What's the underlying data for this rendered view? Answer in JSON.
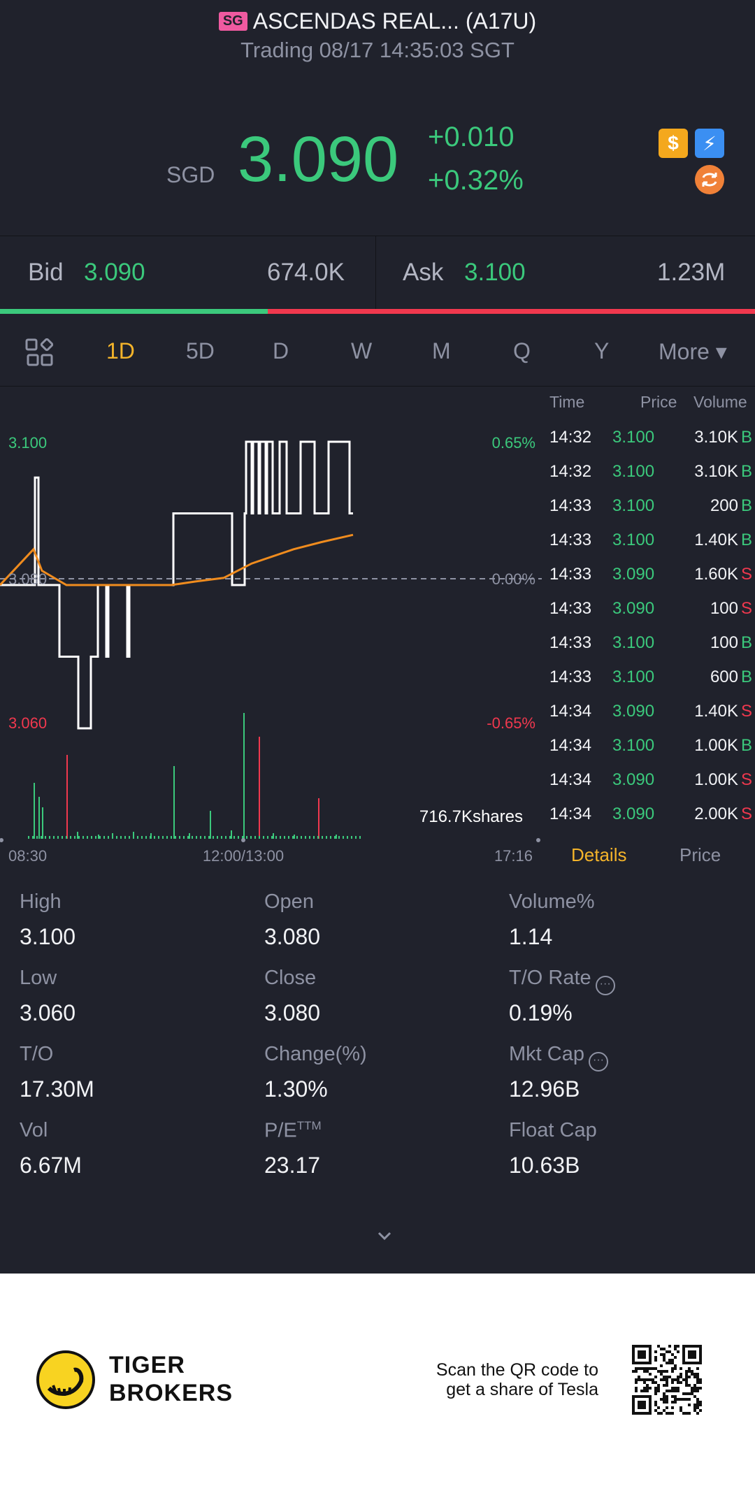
{
  "header": {
    "market": "SG",
    "title": "ASCENDAS REAL... (A17U)",
    "subtitle": "Trading 08/17 14:35:03 SGT"
  },
  "quote": {
    "currency": "SGD",
    "price": "3.090",
    "change": "+0.010",
    "change_pct": "+0.32%",
    "coin_icon": "$",
    "flash_icon": "⚡"
  },
  "bid_ask": {
    "bid_label": "Bid",
    "bid_price": "3.090",
    "bid_volume": "674.0K",
    "ask_label": "Ask",
    "ask_price": "3.100",
    "ask_volume": "1.23M",
    "bid_share": 0.355
  },
  "tabs": [
    "1D",
    "5D",
    "D",
    "W",
    "M",
    "Q",
    "Y",
    "More ▾"
  ],
  "active_tab": "1D",
  "chart_data": {
    "type": "line",
    "y_labels": {
      "top": "3.100",
      "mid": "3.080",
      "bottom": "3.060"
    },
    "pct_labels": {
      "top": "0.65%",
      "mid": "0.00%",
      "bottom": "-0.65%"
    },
    "x_labels": [
      "08:30",
      "12:00/13:00",
      "17:16"
    ],
    "volume_label": "716.7Kshares",
    "ylim": [
      3.06,
      3.1
    ],
    "series": [
      {
        "values": [
          3.08,
          3.08,
          3.095,
          3.08,
          3.07,
          3.07,
          3.06,
          3.07,
          3.08,
          3.07,
          3.08,
          3.07,
          3.08,
          3.08,
          3.09,
          3.09,
          3.08,
          3.09,
          3.1,
          3.09,
          3.1,
          3.09,
          3.1,
          3.09,
          3.1,
          3.09,
          3.1,
          3.09,
          3.1,
          3.09,
          3.1,
          3.09
        ]
      },
      {
        "values": [
          3.08,
          3.085,
          3.082,
          3.08,
          3.08,
          3.08,
          3.0805,
          3.081,
          3.083,
          3.085,
          3.086,
          3.087
        ]
      }
    ]
  },
  "trades": {
    "headers": {
      "time": "Time",
      "price": "Price",
      "volume": "Volume"
    },
    "rows": [
      {
        "time": "14:32",
        "price": "3.100",
        "volume": "3.10K",
        "side": "B"
      },
      {
        "time": "14:32",
        "price": "3.100",
        "volume": "3.10K",
        "side": "B"
      },
      {
        "time": "14:33",
        "price": "3.100",
        "volume": "200",
        "side": "B"
      },
      {
        "time": "14:33",
        "price": "3.100",
        "volume": "1.40K",
        "side": "B"
      },
      {
        "time": "14:33",
        "price": "3.090",
        "volume": "1.60K",
        "side": "S"
      },
      {
        "time": "14:33",
        "price": "3.090",
        "volume": "100",
        "side": "S"
      },
      {
        "time": "14:33",
        "price": "3.100",
        "volume": "100",
        "side": "B"
      },
      {
        "time": "14:33",
        "price": "3.100",
        "volume": "600",
        "side": "B"
      },
      {
        "time": "14:34",
        "price": "3.090",
        "volume": "1.40K",
        "side": "S"
      },
      {
        "time": "14:34",
        "price": "3.100",
        "volume": "1.00K",
        "side": "B"
      },
      {
        "time": "14:34",
        "price": "3.090",
        "volume": "1.00K",
        "side": "S"
      },
      {
        "time": "14:34",
        "price": "3.090",
        "volume": "2.00K",
        "side": "S"
      }
    ],
    "tab_details": "Details",
    "tab_price": "Price"
  },
  "stats": [
    {
      "label": "High",
      "value": "3.100"
    },
    {
      "label": "Open",
      "value": "3.080"
    },
    {
      "label": "Volume%",
      "value": "1.14"
    },
    {
      "label": "Low",
      "value": "3.060"
    },
    {
      "label": "Close",
      "value": "3.080"
    },
    {
      "label": "T/O Rate",
      "value": "0.19%",
      "info": true
    },
    {
      "label": "T/O",
      "value": "17.30M"
    },
    {
      "label": "Change(%)",
      "value": "1.30%"
    },
    {
      "label": "Mkt Cap",
      "value": "12.96B",
      "info": true
    },
    {
      "label": "Vol",
      "value": "6.67M"
    },
    {
      "label": "P/E",
      "sup": "TTM",
      "value": "23.17"
    },
    {
      "label": "Float Cap",
      "value": "10.63B"
    }
  ],
  "footer": {
    "brand_line1": "TIGER",
    "brand_line2": "BROKERS",
    "promo_line1": "Scan the QR code to",
    "promo_line2": "get a share of Tesla"
  }
}
